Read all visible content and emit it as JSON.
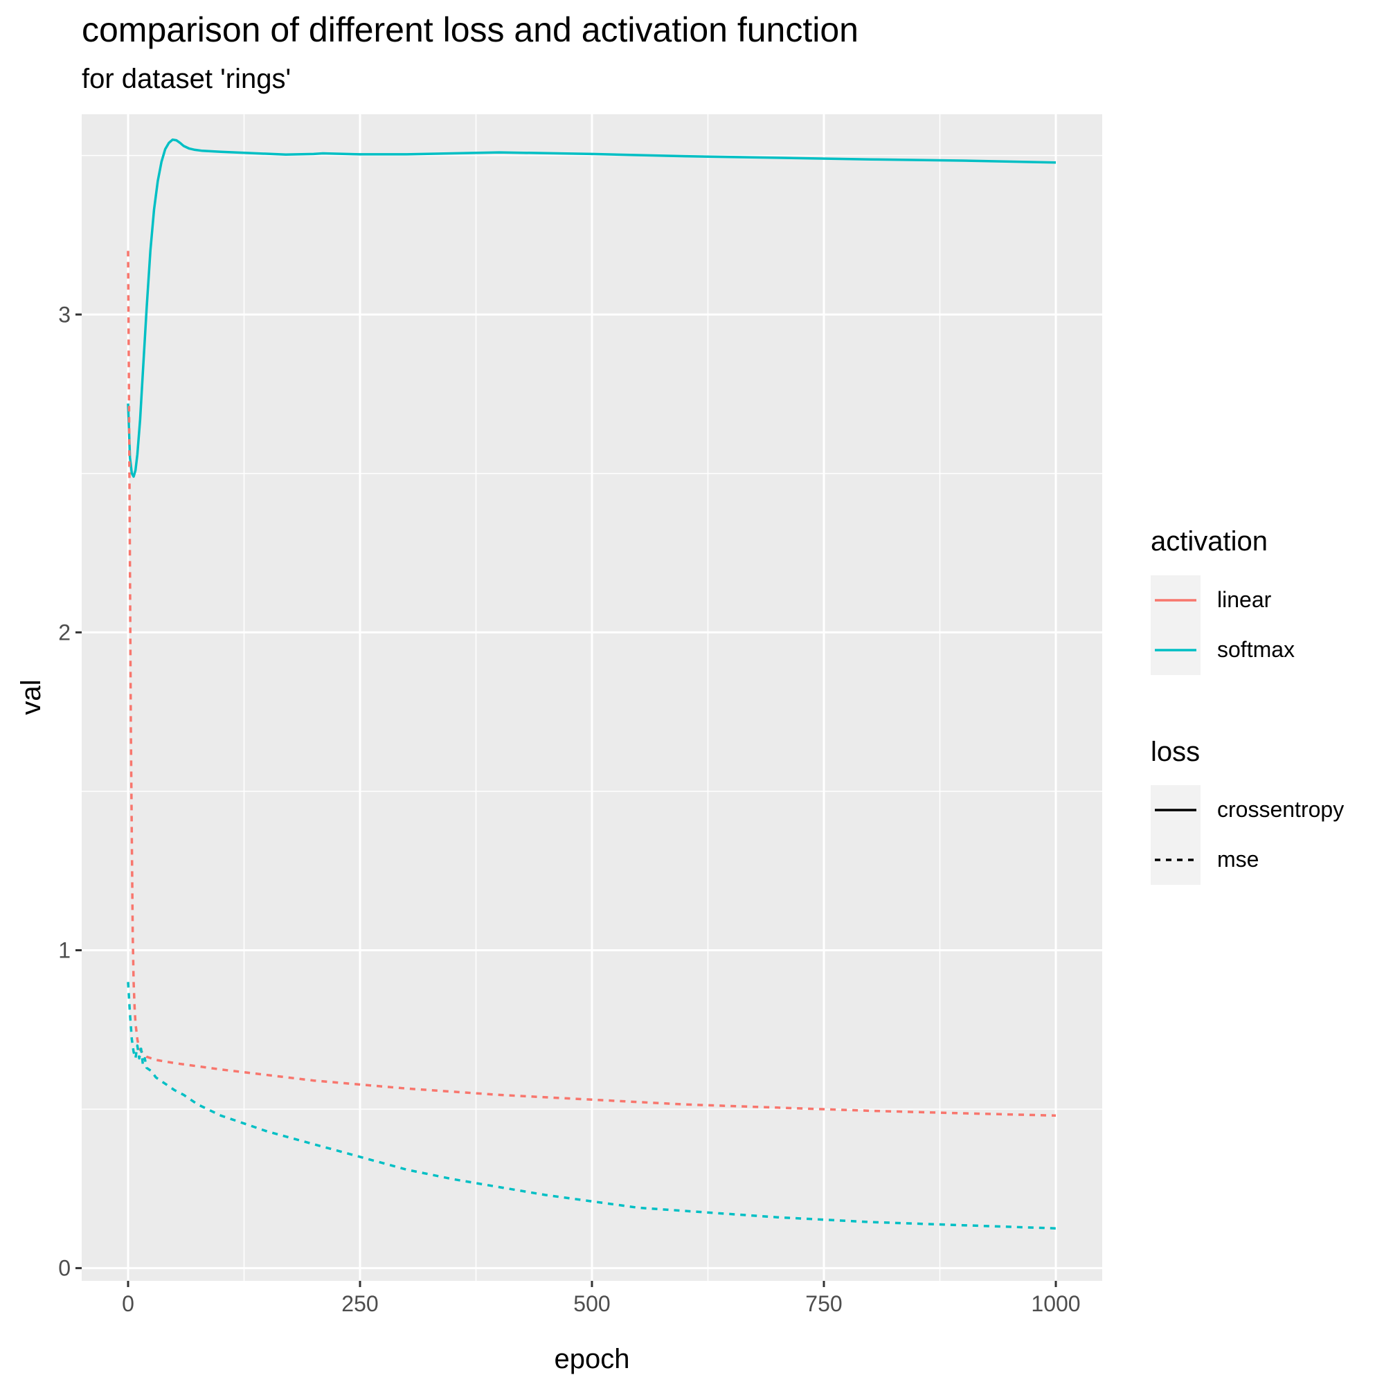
{
  "chart_data": {
    "type": "line",
    "title": "comparison of different loss and activation function",
    "subtitle": "for dataset 'rings'",
    "xlabel": "epoch",
    "ylabel": "val",
    "xlim": [
      -50,
      1050
    ],
    "ylim": [
      -0.04,
      3.63
    ],
    "xticks": [
      0,
      250,
      500,
      750,
      1000
    ],
    "xtick_labels": [
      "0",
      "250",
      "500",
      "750",
      "1000"
    ],
    "yticks": [
      0,
      1,
      2,
      3
    ],
    "ytick_labels": [
      "0",
      "1",
      "2",
      "3"
    ],
    "grid": true,
    "legend_position": "right",
    "legends": [
      {
        "title": "activation",
        "entries": [
          {
            "label": "linear",
            "color": "#F8766D",
            "style": "solid"
          },
          {
            "label": "softmax",
            "color": "#00BFC4",
            "style": "solid"
          }
        ]
      },
      {
        "title": "loss",
        "entries": [
          {
            "label": "crossentropy",
            "color": "#000000",
            "style": "solid"
          },
          {
            "label": "mse",
            "color": "#000000",
            "style": "dashed"
          }
        ]
      }
    ],
    "series": [
      {
        "activation": "softmax",
        "loss": "crossentropy",
        "color": "#00BFC4",
        "style": "solid",
        "x": [
          0,
          2,
          4,
          6,
          8,
          10,
          13,
          16,
          20,
          24,
          28,
          32,
          36,
          40,
          44,
          48,
          52,
          56,
          60,
          66,
          72,
          80,
          100,
          130,
          170,
          200,
          210,
          250,
          300,
          400,
          500,
          600,
          700,
          800,
          900,
          1000
        ],
        "y": [
          2.72,
          2.55,
          2.5,
          2.49,
          2.51,
          2.56,
          2.67,
          2.82,
          3.02,
          3.2,
          3.33,
          3.42,
          3.48,
          3.52,
          3.54,
          3.55,
          3.548,
          3.54,
          3.53,
          3.522,
          3.518,
          3.515,
          3.512,
          3.508,
          3.503,
          3.505,
          3.507,
          3.504,
          3.504,
          3.51,
          3.505,
          3.498,
          3.493,
          3.488,
          3.484,
          3.478
        ]
      },
      {
        "activation": "linear",
        "loss": "mse",
        "color": "#F8766D",
        "style": "dashed",
        "x": [
          0,
          1,
          2,
          3,
          4,
          5,
          6,
          7,
          8,
          10,
          12,
          15,
          18,
          20,
          25,
          30,
          50,
          100,
          200,
          300,
          400,
          500,
          600,
          700,
          800,
          900,
          1000
        ],
        "y": [
          3.2,
          2.75,
          2.2,
          1.7,
          1.35,
          1.05,
          0.9,
          0.82,
          0.77,
          0.72,
          0.69,
          0.68,
          0.67,
          0.665,
          0.66,
          0.655,
          0.645,
          0.625,
          0.59,
          0.565,
          0.545,
          0.53,
          0.515,
          0.505,
          0.495,
          0.487,
          0.48
        ]
      },
      {
        "activation": "softmax",
        "loss": "mse",
        "color": "#00BFC4",
        "style": "dashed",
        "x": [
          0,
          2,
          4,
          6,
          8,
          10,
          12,
          14,
          16,
          18,
          20,
          25,
          30,
          40,
          50,
          60,
          75,
          100,
          125,
          150,
          175,
          200,
          250,
          300,
          350,
          400,
          450,
          500,
          550,
          600,
          700,
          800,
          900,
          1000
        ],
        "y": [
          0.9,
          0.8,
          0.72,
          0.68,
          0.66,
          0.7,
          0.66,
          0.69,
          0.64,
          0.66,
          0.63,
          0.62,
          0.6,
          0.58,
          0.56,
          0.545,
          0.515,
          0.48,
          0.455,
          0.43,
          0.41,
          0.39,
          0.35,
          0.31,
          0.28,
          0.255,
          0.23,
          0.21,
          0.19,
          0.18,
          0.16,
          0.145,
          0.135,
          0.125
        ]
      }
    ]
  }
}
